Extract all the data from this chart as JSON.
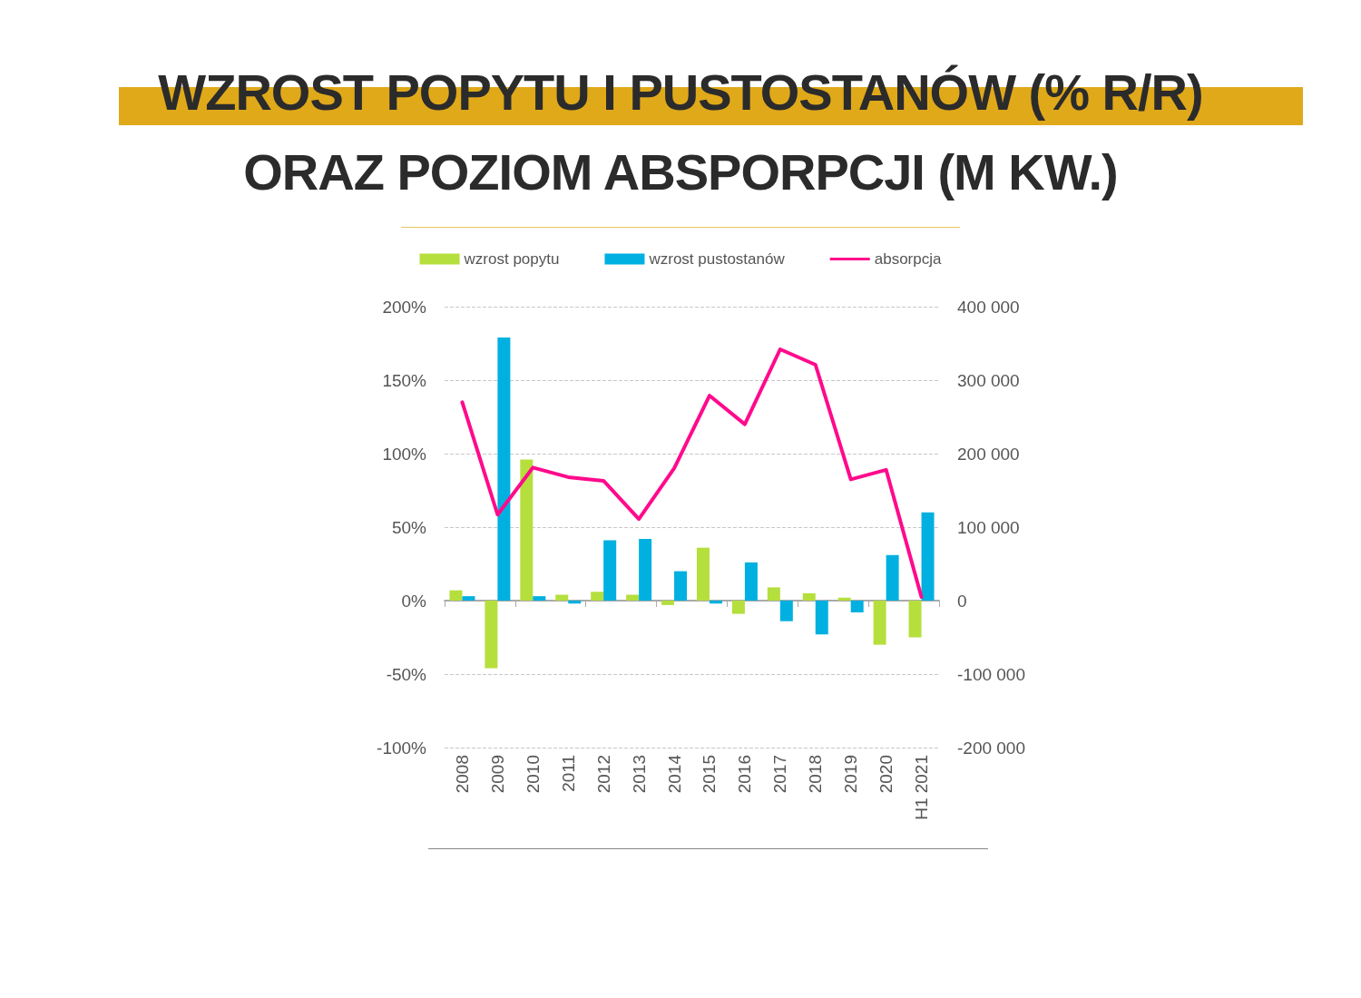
{
  "chart_data": {
    "type": "bar",
    "title": "WZROST POPYTU I PUSTOSTANÓW (% R/R)\nORAZ POZIOM ABSPORPCJI (M KW.)",
    "categories": [
      "2008",
      "2009",
      "2010",
      "2011",
      "2012",
      "2013",
      "2014",
      "2015",
      "2016",
      "2017",
      "2018",
      "2019",
      "2020",
      "H1 2021"
    ],
    "series": [
      {
        "name": "wzrost popytu",
        "color": "#b5df3c",
        "values": [
          7,
          -46,
          96,
          4,
          6,
          4,
          -3,
          36,
          -9,
          9,
          5,
          2,
          -30,
          -25
        ]
      },
      {
        "name": "wzrost pustostanów",
        "color": "#00b0e0",
        "values": [
          3,
          179,
          3,
          -2,
          41,
          42,
          20,
          -2,
          26,
          -14,
          -23,
          -8,
          31,
          60
        ]
      },
      {
        "name": "absorpcja",
        "type": "line",
        "axis": "y2",
        "color": "#ff0a8c",
        "values": [
          270000,
          117000,
          181000,
          168000,
          163000,
          111000,
          180000,
          279000,
          240000,
          342000,
          321000,
          165000,
          178000,
          5000
        ]
      }
    ],
    "ylim": [
      -100,
      200
    ],
    "yticks": [
      {
        "value": -100,
        "label": "-100%"
      },
      {
        "value": -50,
        "label": "-50%"
      },
      {
        "value": 0,
        "label": "0%"
      },
      {
        "value": 50,
        "label": "50%"
      },
      {
        "value": 100,
        "label": "100%"
      },
      {
        "value": 150,
        "label": "150%"
      },
      {
        "value": 200,
        "label": "200%"
      }
    ],
    "y2lim": [
      -200000,
      400000
    ],
    "y2ticks": [
      {
        "value": -200000,
        "label": "-200 000"
      },
      {
        "value": -100000,
        "label": "-100 000"
      },
      {
        "value": 0,
        "label": "0"
      },
      {
        "value": 100000,
        "label": "100 000"
      },
      {
        "value": 200000,
        "label": "200 000"
      },
      {
        "value": 300000,
        "label": "300 000"
      },
      {
        "value": 400000,
        "label": "400 000"
      }
    ],
    "grid": "y",
    "legend": "top",
    "marker": "none",
    "line_style": "solid"
  }
}
